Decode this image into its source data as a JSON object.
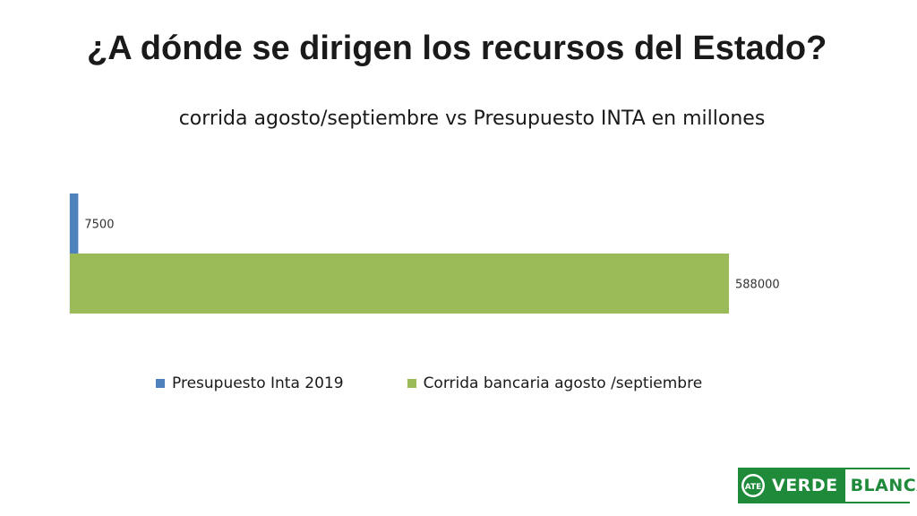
{
  "slide": {
    "title": "¿A dónde se dirigen los recursos del Estado?"
  },
  "chart_data": {
    "type": "bar",
    "orientation": "horizontal",
    "title": "corrida agosto/septiembre vs Presupuesto INTA en millones",
    "xlabel": "",
    "ylabel": "",
    "xlim": [
      0,
      588000
    ],
    "grid": false,
    "legend_position": "bottom",
    "data_labels": true,
    "series": [
      {
        "name": "Presupuesto Inta 2019",
        "values": [
          7500
        ],
        "color": "#4f81bd"
      },
      {
        "name": "Corrida bancaria agosto /septiembre",
        "values": [
          588000
        ],
        "color": "#9bbb59"
      }
    ]
  },
  "logo": {
    "word1": "VERDE",
    "word2": "BLANCA",
    "emblem_text": "ATE",
    "color": "#1e8a3a"
  }
}
